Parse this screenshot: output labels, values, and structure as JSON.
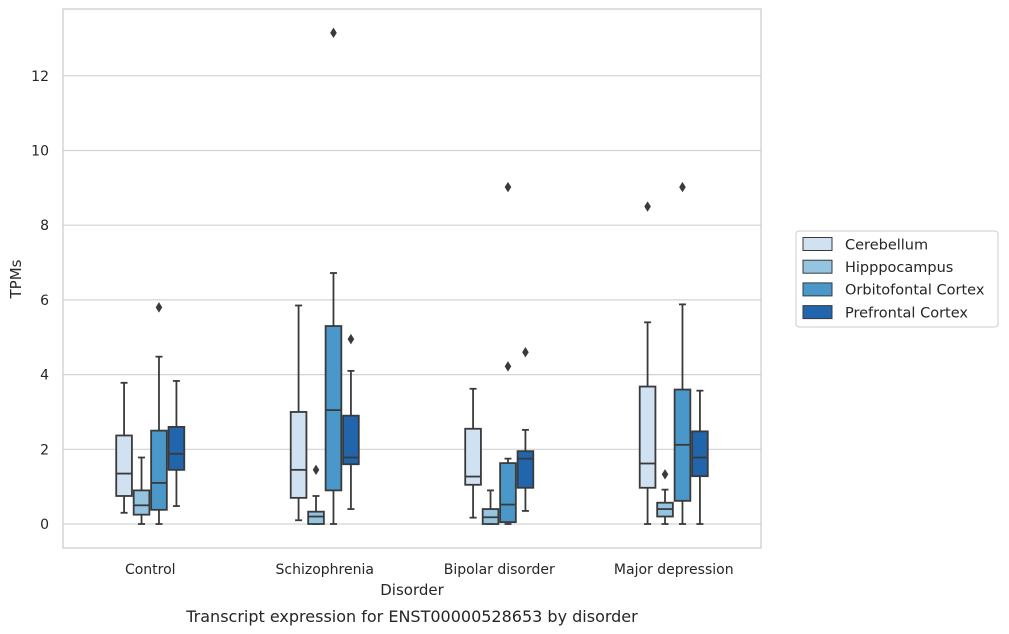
{
  "chart_data": {
    "type": "box",
    "xlabel": "Disorder",
    "ylabel": "TPMs",
    "caption": "Transcript expression for ENST00000528653 by disorder",
    "categories": [
      "Control",
      "Schizophrenia",
      "Bipolar disorder",
      "Major depression"
    ],
    "ylim": [
      -0.65,
      13.8
    ],
    "yticks": [
      0,
      2,
      4,
      6,
      8,
      10,
      12
    ],
    "grid": "horizontal",
    "legend_position": "right",
    "series": [
      {
        "name": "Cerebellum",
        "color": "#d0e1f2",
        "boxes": [
          {
            "whislo": 0.3,
            "q1": 0.75,
            "med": 1.35,
            "q3": 2.37,
            "whishi": 3.78,
            "fliers": []
          },
          {
            "whislo": 0.1,
            "q1": 0.7,
            "med": 1.45,
            "q3": 3.0,
            "whishi": 5.85,
            "fliers": []
          },
          {
            "whislo": 0.17,
            "q1": 1.05,
            "med": 1.27,
            "q3": 2.55,
            "whishi": 3.62,
            "fliers": []
          },
          {
            "whislo": 0.0,
            "q1": 0.97,
            "med": 1.62,
            "q3": 3.68,
            "whishi": 5.4,
            "fliers": [
              8.5
            ]
          }
        ]
      },
      {
        "name": "Hipppocampus",
        "color": "#94c4df",
        "boxes": [
          {
            "whislo": 0.0,
            "q1": 0.25,
            "med": 0.5,
            "q3": 0.9,
            "whishi": 1.78,
            "fliers": []
          },
          {
            "whislo": 0.0,
            "q1": 0.0,
            "med": 0.2,
            "q3": 0.33,
            "whishi": 0.75,
            "fliers": [
              1.45
            ]
          },
          {
            "whislo": 0.0,
            "q1": 0.0,
            "med": 0.18,
            "q3": 0.4,
            "whishi": 0.9,
            "fliers": []
          },
          {
            "whislo": 0.0,
            "q1": 0.2,
            "med": 0.4,
            "q3": 0.57,
            "whishi": 0.92,
            "fliers": [
              1.33
            ]
          }
        ]
      },
      {
        "name": "Orbitofontal Cortex",
        "color": "#4a98c9",
        "boxes": [
          {
            "whislo": 0.0,
            "q1": 0.38,
            "med": 1.1,
            "q3": 2.5,
            "whishi": 4.48,
            "fliers": [
              5.8
            ]
          },
          {
            "whislo": 0.0,
            "q1": 0.9,
            "med": 3.05,
            "q3": 5.3,
            "whishi": 6.72,
            "fliers": [
              13.15
            ]
          },
          {
            "whislo": 0.0,
            "q1": 0.05,
            "med": 0.52,
            "q3": 1.63,
            "whishi": 1.75,
            "fliers": [
              4.22,
              9.02
            ]
          },
          {
            "whislo": 0.0,
            "q1": 0.62,
            "med": 2.12,
            "q3": 3.6,
            "whishi": 5.88,
            "fliers": [
              9.02
            ]
          }
        ]
      },
      {
        "name": "Prefrontal Cortex",
        "color": "#2166ac",
        "boxes": [
          {
            "whislo": 0.48,
            "q1": 1.45,
            "med": 1.88,
            "q3": 2.6,
            "whishi": 3.83,
            "fliers": []
          },
          {
            "whislo": 0.4,
            "q1": 1.6,
            "med": 1.78,
            "q3": 2.9,
            "whishi": 4.1,
            "fliers": [
              4.95
            ]
          },
          {
            "whislo": 0.35,
            "q1": 0.97,
            "med": 1.75,
            "q3": 1.95,
            "whishi": 2.52,
            "fliers": [
              4.6
            ]
          },
          {
            "whislo": 0.0,
            "q1": 1.28,
            "med": 1.78,
            "q3": 2.48,
            "whishi": 3.57,
            "fliers": []
          }
        ]
      }
    ]
  }
}
